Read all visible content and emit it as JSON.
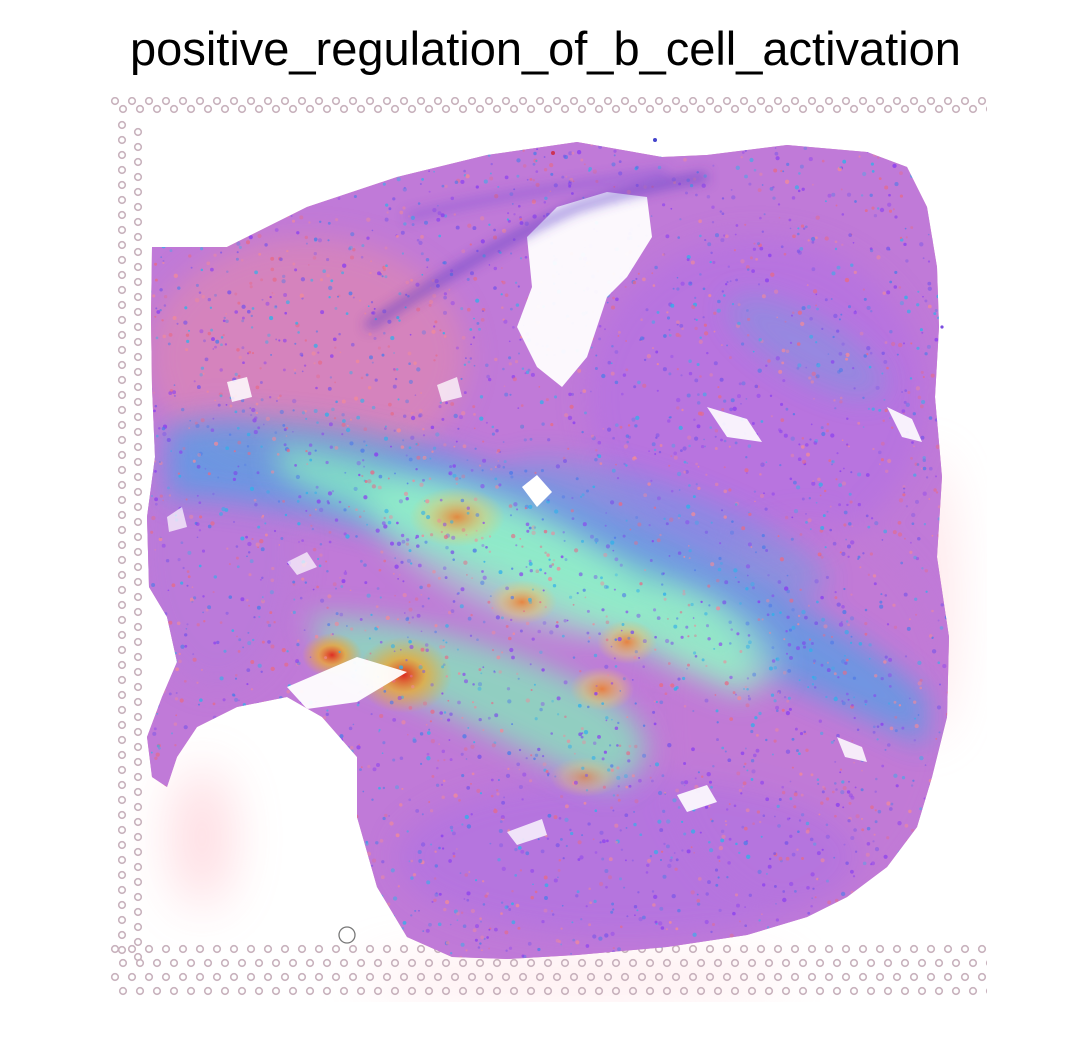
{
  "figure": {
    "title": "positive_regulation_of_b_cell_activation"
  },
  "image": {
    "type": "spatial-transcriptomics-overlay",
    "background": "tissue-section",
    "colormap": "rainbow",
    "colors": {
      "low": "#8a3ff0",
      "mid_low": "#2fb0ea",
      "mid": "#7ef2b8",
      "mid_high": "#f5a623",
      "high": "#e0261b",
      "tissue_pink": "#f08a9a",
      "fiducial_spot": "#c8b2bd"
    }
  }
}
